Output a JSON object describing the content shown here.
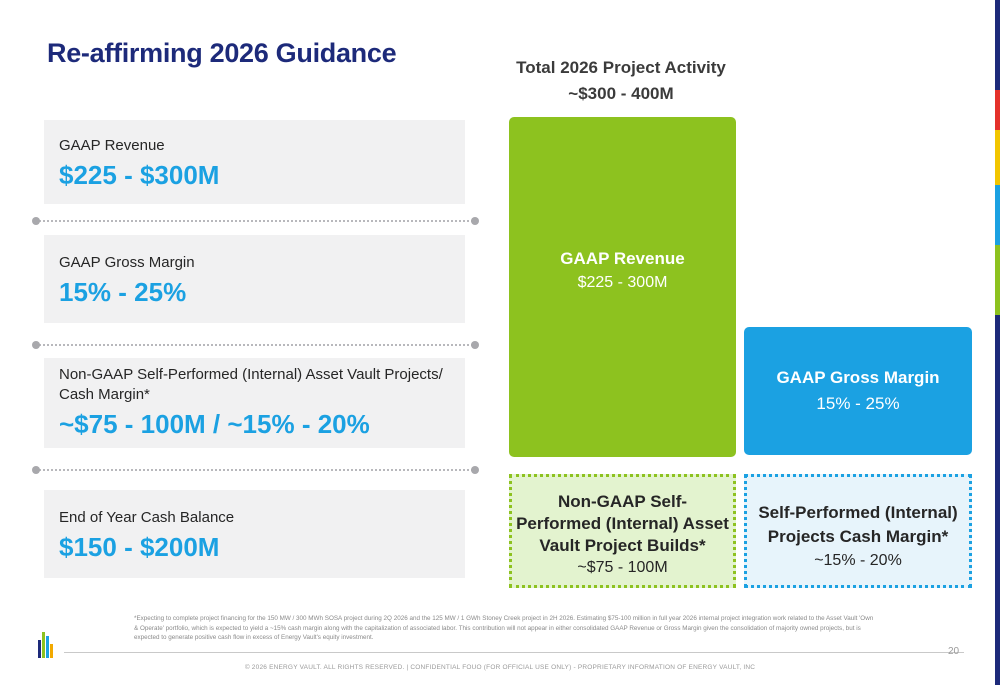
{
  "title": "Re-affirming 2026 Guidance",
  "metrics": [
    {
      "label": "GAAP Revenue",
      "value": "$225 - $300M"
    },
    {
      "label": "GAAP Gross Margin",
      "value": "15% - 25%"
    },
    {
      "label": "Non-GAAP Self-Performed (Internal) Asset Vault Projects/ Cash Margin*",
      "value": "~$75 - 100M / ~15% - 20%"
    },
    {
      "label": "End of Year Cash Balance",
      "value": "$150 - $200M"
    }
  ],
  "activity": {
    "title": "Total 2026 Project Activity",
    "range": "~$300 - 400M",
    "boxes": {
      "revenue": {
        "title": "GAAP Revenue",
        "value": "$225 - 300M"
      },
      "margin": {
        "title": "GAAP Gross Margin",
        "value": "15% - 25%"
      },
      "nongaap": {
        "title": "Non-GAAP Self-Performed (Internal) Asset Vault Project Builds*",
        "value": "~$75 - 100M"
      },
      "selfperf": {
        "title": "Self-Performed (Internal) Projects Cash Margin*",
        "value": "~15% - 20%"
      }
    }
  },
  "footnote": "*Expecting to complete project financing for the 150 MW / 300 MWh SOSA project during 2Q 2026 and the 125 MW / 1 GWh Stoney Creek project in 2H 2026. Estimating $75-100 million in full year 2026 internal project integration work related to the Asset Vault 'Own & Operate' portfolio, which is expected to yield a ~15% cash margin along with the capitalization of associated labor. This contribution will not appear in either consolidated GAAP Revenue or Gross Margin given the consolidation of majority owned projects, but is expected to generate positive cash flow in excess of Energy Vault's equity investment.",
  "page_number": "20",
  "footer": "© 2026 ENERGY VAULT. ALL RIGHTS RESERVED. | CONFIDENTIAL FOUO (FOR OFFICIAL USE ONLY) - PROPRIETARY INFORMATION OF ENERGY VAULT, INC",
  "colors": {
    "navy": "#1d2a7a",
    "accent_blue": "#1ba1e2",
    "accent_green": "#8dc21f"
  }
}
